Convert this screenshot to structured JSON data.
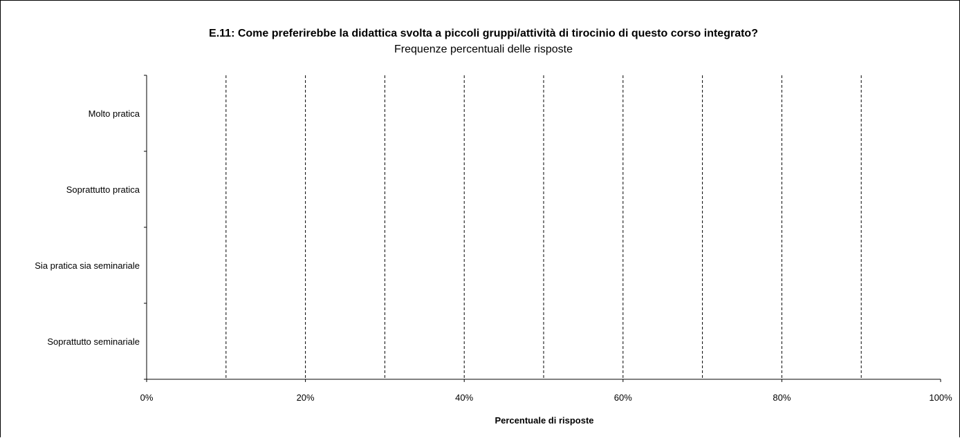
{
  "chart_data": {
    "type": "bar",
    "orientation": "horizontal",
    "title": "E.11: Come preferirebbe la didattica svolta a piccoli gruppi/attività di tirocinio di questo corso integrato?",
    "subtitle": "Frequenze percentuali delle risposte",
    "categories": [
      "Molto pratica",
      "Soprattutto pratica",
      "Sia pratica sia seminariale",
      "Soprattutto seminariale"
    ],
    "values": [
      0,
      0,
      0,
      0
    ],
    "xlabel": "Percentuale di risposte",
    "xlim": [
      0,
      100
    ],
    "x_ticks": [
      0,
      20,
      40,
      60,
      80,
      100
    ],
    "x_tick_labels": [
      "0%",
      "20%",
      "40%",
      "60%",
      "80%",
      "100%"
    ],
    "grid": "vertical dashed every 10%",
    "legend": "none",
    "colors": {
      "axis": "#000000",
      "grid": "#000000",
      "background": "#ffffff"
    }
  }
}
